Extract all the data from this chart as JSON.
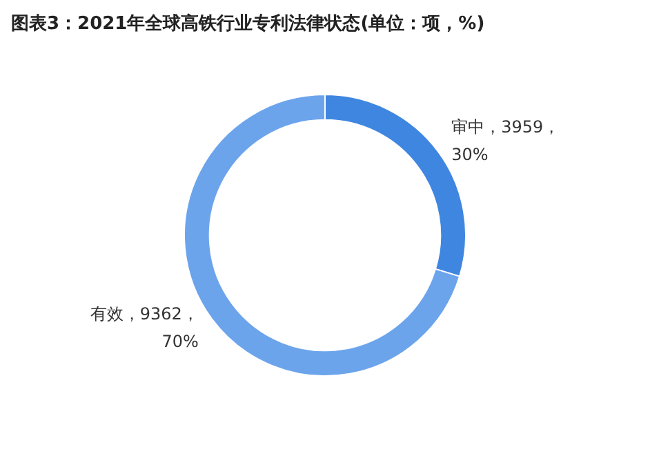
{
  "chart_data": {
    "type": "donut",
    "title": "图表3：2021年全球高铁行业专利法律状态(单位：项，%)",
    "categories": [
      "审中",
      "有效"
    ],
    "values": [
      3959,
      9362
    ],
    "colors": [
      "#3f86e0",
      "#6ca4ec"
    ],
    "value_labels": [
      "，3959，30%",
      "，9362，70%"
    ],
    "legend": false
  }
}
